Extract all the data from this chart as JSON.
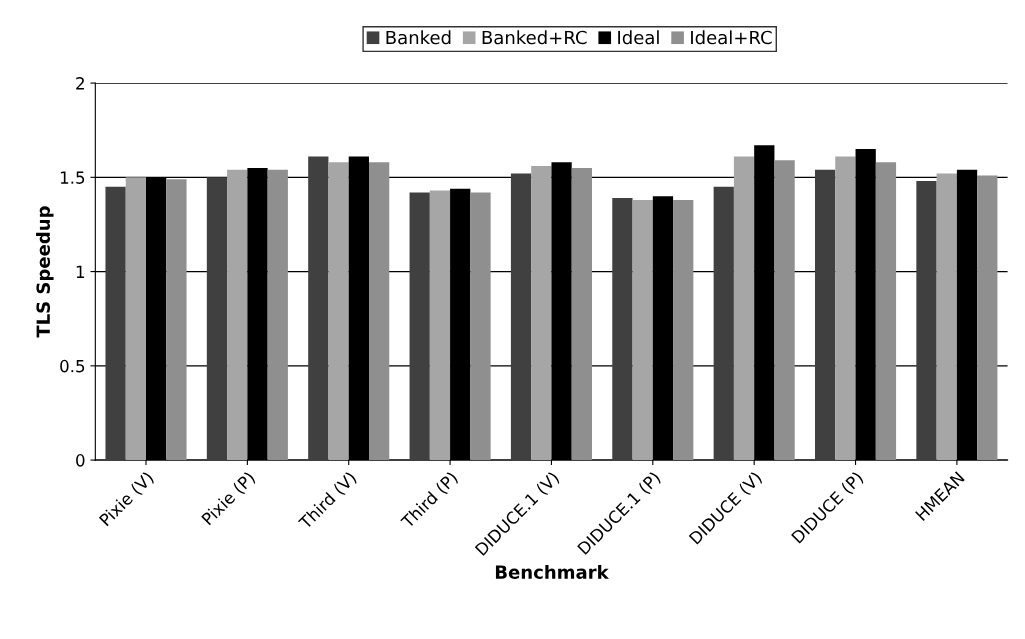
{
  "chart_data": {
    "type": "bar",
    "xlabel": "Benchmark",
    "ylabel": "TLS Speedup",
    "categories": [
      "Pixie (V)",
      "Pixie (P)",
      "Third (V)",
      "Third (P)",
      "DIDUCE.1 (V)",
      "DIDUCE.1 (P)",
      "DIDUCE (V)",
      "DIDUCE (P)",
      "HMEAN"
    ],
    "series": [
      {
        "name": "Banked",
        "color": "#404040",
        "values": [
          1.45,
          1.5,
          1.61,
          1.42,
          1.52,
          1.39,
          1.45,
          1.54,
          1.48
        ]
      },
      {
        "name": "Banked+RC",
        "color": "#a6a6a6",
        "values": [
          1.5,
          1.54,
          1.58,
          1.43,
          1.56,
          1.38,
          1.61,
          1.61,
          1.52
        ]
      },
      {
        "name": "Ideal",
        "color": "#000000",
        "values": [
          1.5,
          1.55,
          1.61,
          1.44,
          1.58,
          1.4,
          1.67,
          1.65,
          1.54
        ]
      },
      {
        "name": "Ideal+RC",
        "color": "#8f8f8f",
        "values": [
          1.49,
          1.54,
          1.58,
          1.42,
          1.55,
          1.38,
          1.59,
          1.58,
          1.51
        ]
      }
    ],
    "ylim": [
      0,
      2
    ],
    "yticks": [
      0,
      0.5,
      1,
      1.5,
      2
    ],
    "grid": "y",
    "legend": "top"
  }
}
